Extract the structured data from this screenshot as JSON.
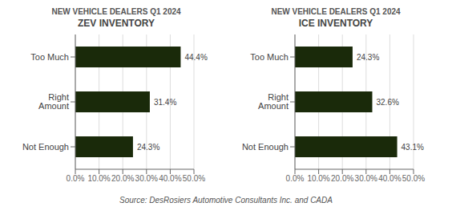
{
  "chart_data": [
    {
      "type": "bar",
      "orientation": "horizontal",
      "title": "ZEV INVENTORY",
      "subtitle": "NEW VEHICLE DEALERS Q1 2024",
      "categories": [
        "Too Much",
        "Right Amount",
        "Not Enough"
      ],
      "values": [
        44.4,
        31.4,
        24.3
      ],
      "value_labels": [
        "44.4%",
        "31.4%",
        "24.3%"
      ],
      "data_labels": true,
      "color": "#1a2a0a",
      "xlim": [
        0,
        50
      ],
      "xticks": [
        {
          "value": 0,
          "label": "0.0%"
        },
        {
          "value": 10,
          "label": "10.0%"
        },
        {
          "value": 20,
          "label": "20.0%"
        },
        {
          "value": 30,
          "label": "30.0%"
        },
        {
          "value": 40,
          "label": "40.0%"
        },
        {
          "value": 50,
          "label": "50.0%"
        }
      ],
      "grid": "x"
    },
    {
      "type": "bar",
      "orientation": "horizontal",
      "title": "ICE INVENTORY",
      "subtitle": "NEW VEHICLE DEALERS Q1 2024",
      "categories": [
        "Too Much",
        "Right Amount",
        "Not Enough"
      ],
      "values": [
        24.3,
        32.6,
        43.1
      ],
      "value_labels": [
        "24.3%",
        "32.6%",
        "43.1%"
      ],
      "data_labels": true,
      "color": "#1a2a0a",
      "xlim": [
        0,
        50
      ],
      "xticks": [
        {
          "value": 0,
          "label": "0.0%"
        },
        {
          "value": 10,
          "label": "10.0%"
        },
        {
          "value": 20,
          "label": "20.0%"
        },
        {
          "value": 30,
          "label": "30.0%"
        },
        {
          "value": 40,
          "label": "40.0%"
        },
        {
          "value": 50,
          "label": "50.0%"
        }
      ],
      "grid": "x"
    }
  ],
  "source": "Source: DesRosiers Automotive Consultants Inc. and CADA"
}
